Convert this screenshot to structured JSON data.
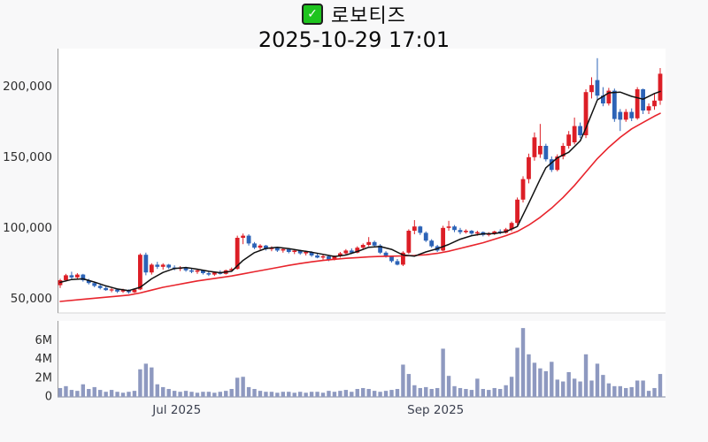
{
  "header": {
    "title": "로보티즈",
    "datetime": "2025-10-29 17:01"
  },
  "icons": {
    "checkbox_check": "✓"
  },
  "colors": {
    "up": "#dc1e26",
    "down": "#2c63b7",
    "ma_fast": "#111111",
    "ma_slow": "#e8242c",
    "volume": "#8e99c0",
    "axis": "#9a9a9a",
    "plot_border": "#d6d6d6",
    "volume_baseline": "#99a0b5",
    "background": "#f8f8f9",
    "plot_bg": "#ffffff",
    "tick_label": "#2e2e2e",
    "date_label": "#3c4150",
    "checkbox_green": "#1ec41e"
  },
  "chart_data": {
    "type": "candlestick+volume",
    "title": "로보티즈",
    "subtitle": "2025-10-29 17:01",
    "legend_position": "none",
    "grid": false,
    "price_axis": {
      "side": "left",
      "range": [
        42000,
        228000
      ],
      "ticks": [
        {
          "label": "50,000",
          "value": 50000
        },
        {
          "label": "100,000",
          "value": 100000
        },
        {
          "label": "150,000",
          "value": 150000
        },
        {
          "label": "200,000",
          "value": 200000
        }
      ]
    },
    "volume_axis": {
      "side": "left",
      "unit": "M",
      "range": [
        0,
        8
      ],
      "ticks": [
        {
          "label": "0",
          "value": 0
        },
        {
          "label": "2M",
          "value": 2
        },
        {
          "label": "4M",
          "value": 4
        },
        {
          "label": "6M",
          "value": 6
        }
      ]
    },
    "x_axis": {
      "labels": [
        {
          "label": "Jul 2025",
          "i": 20.4
        },
        {
          "label": "Sep 2025",
          "i": 65.7
        }
      ]
    },
    "series_notes": {
      "candles_format": [
        "open",
        "high",
        "low",
        "close",
        "volume_M"
      ],
      "ma_format": [
        "index",
        "value"
      ]
    },
    "candles": [
      [
        59000,
        63500,
        57000,
        62500,
        0.9
      ],
      [
        62500,
        67000,
        61500,
        66000,
        1.1
      ],
      [
        66000,
        68500,
        63500,
        64500,
        0.7
      ],
      [
        64500,
        67500,
        63500,
        66500,
        0.6
      ],
      [
        66500,
        67000,
        61500,
        62500,
        1.3
      ],
      [
        62500,
        63500,
        59500,
        60500,
        0.8
      ],
      [
        60500,
        61500,
        57500,
        58500,
        1.0
      ],
      [
        58500,
        59500,
        56000,
        57000,
        0.7
      ],
      [
        57000,
        58500,
        55000,
        55500,
        0.5
      ],
      [
        55500,
        57000,
        54000,
        56000,
        0.7
      ],
      [
        56000,
        56500,
        53500,
        54500,
        0.5
      ],
      [
        54500,
        56500,
        53500,
        55500,
        0.4
      ],
      [
        55500,
        56000,
        53000,
        54000,
        0.5
      ],
      [
        54000,
        56500,
        53500,
        56000,
        0.6
      ],
      [
        56000,
        81500,
        55500,
        80500,
        2.9
      ],
      [
        80500,
        82000,
        66000,
        68000,
        3.5
      ],
      [
        68000,
        74500,
        66500,
        73500,
        3.1
      ],
      [
        73500,
        75500,
        70500,
        72000,
        1.3
      ],
      [
        72000,
        74500,
        70000,
        73500,
        1.0
      ],
      [
        73500,
        74000,
        70500,
        71500,
        0.8
      ],
      [
        71500,
        73000,
        69500,
        70500,
        0.6
      ],
      [
        70500,
        72500,
        69000,
        71500,
        0.5
      ],
      [
        71500,
        72000,
        68500,
        69500,
        0.6
      ],
      [
        69500,
        71000,
        67500,
        68500,
        0.5
      ],
      [
        68500,
        70500,
        67000,
        69500,
        0.4
      ],
      [
        69500,
        70000,
        66500,
        67500,
        0.5
      ],
      [
        67500,
        69000,
        65500,
        66500,
        0.5
      ],
      [
        66500,
        68500,
        65500,
        68000,
        0.4
      ],
      [
        68000,
        69500,
        66500,
        67000,
        0.5
      ],
      [
        67000,
        70000,
        66500,
        69500,
        0.6
      ],
      [
        69500,
        71500,
        68500,
        70500,
        0.8
      ],
      [
        70500,
        94000,
        70000,
        92500,
        2.0
      ],
      [
        92500,
        95500,
        88000,
        94000,
        2.1
      ],
      [
        94000,
        95000,
        87000,
        88500,
        1.0
      ],
      [
        88500,
        89500,
        84500,
        85500,
        0.8
      ],
      [
        85500,
        88000,
        84000,
        87000,
        0.6
      ],
      [
        87000,
        87500,
        83500,
        84500,
        0.5
      ],
      [
        84500,
        86500,
        83000,
        85500,
        0.5
      ],
      [
        85500,
        86000,
        82500,
        83500,
        0.4
      ],
      [
        83500,
        85500,
        82000,
        84500,
        0.5
      ],
      [
        84500,
        85000,
        81500,
        82500,
        0.5
      ],
      [
        82500,
        84500,
        81000,
        83500,
        0.4
      ],
      [
        83500,
        84000,
        80500,
        81500,
        0.5
      ],
      [
        81500,
        83500,
        80000,
        82500,
        0.4
      ],
      [
        82500,
        83000,
        79000,
        80000,
        0.5
      ],
      [
        80000,
        81500,
        78000,
        78500,
        0.5
      ],
      [
        78500,
        80500,
        77000,
        79500,
        0.4
      ],
      [
        79500,
        80000,
        76000,
        77000,
        0.6
      ],
      [
        77000,
        80000,
        76500,
        79500,
        0.5
      ],
      [
        79500,
        82500,
        78500,
        81500,
        0.6
      ],
      [
        81500,
        84500,
        80500,
        83500,
        0.7
      ],
      [
        83500,
        85000,
        81000,
        82000,
        0.5
      ],
      [
        82000,
        86500,
        81500,
        85500,
        0.8
      ],
      [
        85500,
        88500,
        84500,
        87500,
        0.9
      ],
      [
        87500,
        93000,
        86500,
        89500,
        0.8
      ],
      [
        89500,
        90500,
        86000,
        87000,
        0.6
      ],
      [
        87000,
        88000,
        81000,
        82000,
        0.5
      ],
      [
        82000,
        83000,
        78500,
        79500,
        0.6
      ],
      [
        79500,
        80000,
        75000,
        76000,
        0.7
      ],
      [
        76000,
        77500,
        73000,
        73500,
        0.8
      ],
      [
        73500,
        83000,
        72500,
        82000,
        3.4
      ],
      [
        82000,
        98500,
        81000,
        97500,
        2.4
      ],
      [
        97500,
        105000,
        95000,
        100500,
        1.2
      ],
      [
        100500,
        101000,
        94500,
        96000,
        0.9
      ],
      [
        96000,
        97000,
        89500,
        90500,
        1.0
      ],
      [
        90500,
        91500,
        85500,
        86500,
        0.8
      ],
      [
        86500,
        87500,
        82500,
        83500,
        0.9
      ],
      [
        83500,
        101000,
        83000,
        99500,
        5.1
      ],
      [
        99500,
        104500,
        97500,
        100500,
        2.2
      ],
      [
        100500,
        101500,
        96500,
        98000,
        1.1
      ],
      [
        98000,
        99500,
        95000,
        96500,
        0.9
      ],
      [
        96500,
        98500,
        95500,
        97500,
        0.8
      ],
      [
        97500,
        98000,
        94500,
        95500,
        0.7
      ],
      [
        95500,
        97500,
        94000,
        96500,
        1.9
      ],
      [
        96500,
        97000,
        93500,
        94500,
        0.8
      ],
      [
        94500,
        96500,
        93500,
        95500,
        0.7
      ],
      [
        95500,
        97500,
        94500,
        97000,
        0.9
      ],
      [
        97000,
        98500,
        95000,
        96000,
        0.8
      ],
      [
        96000,
        99500,
        95500,
        98500,
        1.2
      ],
      [
        98500,
        104000,
        97000,
        103000,
        2.1
      ],
      [
        103000,
        121000,
        101500,
        119500,
        5.2
      ],
      [
        119500,
        136000,
        117500,
        134000,
        7.3
      ],
      [
        134000,
        152000,
        131000,
        149500,
        4.5
      ],
      [
        149500,
        167000,
        147000,
        163500,
        3.6
      ],
      [
        151500,
        173000,
        149000,
        157500,
        3.0
      ],
      [
        157500,
        159000,
        146500,
        148000,
        2.7
      ],
      [
        148000,
        150000,
        139000,
        140500,
        3.7
      ],
      [
        140500,
        151500,
        139500,
        150000,
        1.8
      ],
      [
        150000,
        159500,
        148000,
        157500,
        1.6
      ],
      [
        157500,
        168000,
        155500,
        165500,
        2.6
      ],
      [
        160000,
        177500,
        158500,
        171500,
        1.9
      ],
      [
        171500,
        174000,
        163000,
        165000,
        1.6
      ],
      [
        165000,
        197500,
        163000,
        195500,
        4.5
      ],
      [
        195500,
        206000,
        191000,
        200500,
        1.7
      ],
      [
        204000,
        219500,
        190500,
        193000,
        3.5
      ],
      [
        193000,
        199000,
        185500,
        187500,
        2.3
      ],
      [
        187500,
        198500,
        186000,
        196500,
        1.4
      ],
      [
        196500,
        198000,
        174500,
        176500,
        1.1
      ],
      [
        181500,
        183500,
        168000,
        176000,
        1.1
      ],
      [
        176000,
        183500,
        174500,
        181500,
        0.9
      ],
      [
        181500,
        184000,
        175000,
        177000,
        1.0
      ],
      [
        177000,
        199000,
        176000,
        197500,
        1.7
      ],
      [
        197500,
        198000,
        180000,
        182500,
        1.7
      ],
      [
        182500,
        187500,
        180000,
        185500,
        0.6
      ],
      [
        185500,
        195000,
        183000,
        189500,
        0.9
      ],
      [
        189500,
        212500,
        186500,
        208500,
        2.4
      ]
    ],
    "ma_fast": [
      [
        0,
        61000
      ],
      [
        2,
        63000
      ],
      [
        4,
        63500
      ],
      [
        6,
        61200
      ],
      [
        8,
        58500
      ],
      [
        10,
        56300
      ],
      [
        12,
        55200
      ],
      [
        14,
        57500
      ],
      [
        16,
        63500
      ],
      [
        18,
        68000
      ],
      [
        20,
        70800
      ],
      [
        22,
        71500
      ],
      [
        24,
        70300
      ],
      [
        26,
        68800
      ],
      [
        28,
        67800
      ],
      [
        30,
        68800
      ],
      [
        32,
        76500
      ],
      [
        34,
        82000
      ],
      [
        36,
        85000
      ],
      [
        38,
        85800
      ],
      [
        40,
        84800
      ],
      [
        42,
        83500
      ],
      [
        44,
        82300
      ],
      [
        46,
        80800
      ],
      [
        48,
        79300
      ],
      [
        50,
        80300
      ],
      [
        52,
        82800
      ],
      [
        54,
        85800
      ],
      [
        56,
        86300
      ],
      [
        58,
        84300
      ],
      [
        60,
        80300
      ],
      [
        62,
        79500
      ],
      [
        64,
        82500
      ],
      [
        66,
        84800
      ],
      [
        68,
        87800
      ],
      [
        70,
        91500
      ],
      [
        72,
        94000
      ],
      [
        74,
        95300
      ],
      [
        76,
        95500
      ],
      [
        78,
        96800
      ],
      [
        80,
        100500
      ],
      [
        82,
        117000
      ],
      [
        84,
        134000
      ],
      [
        85,
        142000
      ],
      [
        87,
        149000
      ],
      [
        89,
        153000
      ],
      [
        91,
        161000
      ],
      [
        92,
        170000
      ],
      [
        94,
        190000
      ],
      [
        96,
        195000
      ],
      [
        98,
        195500
      ],
      [
        100,
        192500
      ],
      [
        102,
        190500
      ],
      [
        104,
        194500
      ],
      [
        105,
        196000
      ]
    ],
    "ma_slow": [
      [
        0,
        47500
      ],
      [
        4,
        49000
      ],
      [
        8,
        50500
      ],
      [
        12,
        52000
      ],
      [
        14,
        53500
      ],
      [
        16,
        55500
      ],
      [
        18,
        57500
      ],
      [
        20,
        59000
      ],
      [
        22,
        60500
      ],
      [
        24,
        62000
      ],
      [
        26,
        63200
      ],
      [
        28,
        64300
      ],
      [
        30,
        65500
      ],
      [
        32,
        67000
      ],
      [
        34,
        68500
      ],
      [
        36,
        70000
      ],
      [
        38,
        71500
      ],
      [
        40,
        73000
      ],
      [
        42,
        74300
      ],
      [
        44,
        75500
      ],
      [
        46,
        76500
      ],
      [
        48,
        77300
      ],
      [
        50,
        78000
      ],
      [
        52,
        78500
      ],
      [
        54,
        79000
      ],
      [
        56,
        79300
      ],
      [
        58,
        79500
      ],
      [
        60,
        79700
      ],
      [
        62,
        80000
      ],
      [
        64,
        80500
      ],
      [
        66,
        81500
      ],
      [
        68,
        83000
      ],
      [
        70,
        85000
      ],
      [
        72,
        87000
      ],
      [
        74,
        89000
      ],
      [
        76,
        91500
      ],
      [
        78,
        94000
      ],
      [
        80,
        97000
      ],
      [
        82,
        101500
      ],
      [
        84,
        107000
      ],
      [
        86,
        113500
      ],
      [
        88,
        121000
      ],
      [
        90,
        129500
      ],
      [
        92,
        139000
      ],
      [
        94,
        148500
      ],
      [
        96,
        156500
      ],
      [
        98,
        163500
      ],
      [
        100,
        169500
      ],
      [
        102,
        174000
      ],
      [
        104,
        178500
      ],
      [
        105,
        180500
      ]
    ]
  }
}
